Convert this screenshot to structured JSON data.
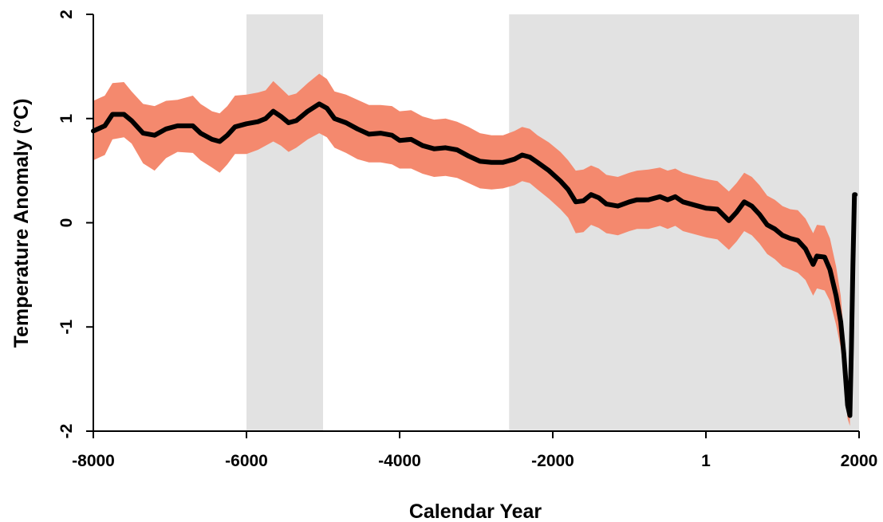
{
  "chart_data": {
    "type": "line",
    "title": "",
    "xlabel": "Calendar Year",
    "ylabel": "Temperature Anomaly (°C)",
    "xlim": [
      -8000,
      2000
    ],
    "ylim": [
      -2,
      2
    ],
    "x_ticks": [
      {
        "value": -8000,
        "label": "-8000"
      },
      {
        "value": -6000,
        "label": "-6000"
      },
      {
        "value": -4000,
        "label": "-4000"
      },
      {
        "value": -2000,
        "label": "-2000"
      },
      {
        "value": 0,
        "label": "1"
      },
      {
        "value": 2000,
        "label": "2000"
      }
    ],
    "y_ticks": [
      {
        "value": 2,
        "label": "2"
      },
      {
        "value": 1,
        "label": "1"
      },
      {
        "value": 0,
        "label": "0"
      },
      {
        "value": -1,
        "label": "-1"
      },
      {
        "value": -2,
        "label": "-2"
      }
    ],
    "grid": false,
    "legend": "none",
    "shaded_periods": [
      {
        "start": -6000,
        "end": -5000
      },
      {
        "start": -2570,
        "end": 2000
      }
    ],
    "colors": {
      "line": "#000000",
      "band": "#f4896e",
      "shade": "#e2e2e2"
    },
    "series": [
      {
        "points": [
          [
            -8000,
            0.88
          ],
          [
            -7850,
            0.93
          ],
          [
            -7750,
            1.04
          ],
          [
            -7600,
            1.04
          ],
          [
            -7500,
            0.98
          ],
          [
            -7350,
            0.86
          ],
          [
            -7200,
            0.84
          ],
          [
            -7050,
            0.9
          ],
          [
            -6900,
            0.93
          ],
          [
            -6700,
            0.93
          ],
          [
            -6600,
            0.86
          ],
          [
            -6450,
            0.8
          ],
          [
            -6350,
            0.78
          ],
          [
            -6250,
            0.84
          ],
          [
            -6150,
            0.92
          ],
          [
            -6000,
            0.95
          ],
          [
            -5850,
            0.97
          ],
          [
            -5750,
            1.0
          ],
          [
            -5650,
            1.07
          ],
          [
            -5550,
            1.02
          ],
          [
            -5450,
            0.96
          ],
          [
            -5350,
            0.98
          ],
          [
            -5200,
            1.07
          ],
          [
            -5050,
            1.14
          ],
          [
            -4950,
            1.1
          ],
          [
            -4850,
            1.0
          ],
          [
            -4700,
            0.96
          ],
          [
            -4550,
            0.9
          ],
          [
            -4400,
            0.85
          ],
          [
            -4250,
            0.86
          ],
          [
            -4100,
            0.84
          ],
          [
            -4000,
            0.79
          ],
          [
            -3850,
            0.8
          ],
          [
            -3700,
            0.74
          ],
          [
            -3550,
            0.71
          ],
          [
            -3400,
            0.72
          ],
          [
            -3250,
            0.7
          ],
          [
            -3100,
            0.64
          ],
          [
            -2950,
            0.59
          ],
          [
            -2800,
            0.58
          ],
          [
            -2650,
            0.58
          ],
          [
            -2500,
            0.61
          ],
          [
            -2400,
            0.65
          ],
          [
            -2300,
            0.63
          ],
          [
            -2200,
            0.58
          ],
          [
            -2050,
            0.5
          ],
          [
            -1900,
            0.4
          ],
          [
            -1800,
            0.32
          ],
          [
            -1700,
            0.2
          ],
          [
            -1600,
            0.21
          ],
          [
            -1500,
            0.27
          ],
          [
            -1400,
            0.24
          ],
          [
            -1300,
            0.18
          ],
          [
            -1150,
            0.16
          ],
          [
            -1000,
            0.2
          ],
          [
            -900,
            0.22
          ],
          [
            -750,
            0.22
          ],
          [
            -600,
            0.25
          ],
          [
            -500,
            0.22
          ],
          [
            -400,
            0.25
          ],
          [
            -300,
            0.2
          ],
          [
            -150,
            0.17
          ],
          [
            0,
            0.14
          ],
          [
            150,
            0.13
          ],
          [
            300,
            0.02
          ],
          [
            400,
            0.1
          ],
          [
            500,
            0.2
          ],
          [
            600,
            0.16
          ],
          [
            700,
            0.08
          ],
          [
            800,
            -0.02
          ],
          [
            900,
            -0.06
          ],
          [
            1000,
            -0.12
          ],
          [
            1100,
            -0.15
          ],
          [
            1200,
            -0.17
          ],
          [
            1300,
            -0.25
          ],
          [
            1400,
            -0.4
          ],
          [
            1450,
            -0.32
          ],
          [
            1550,
            -0.33
          ],
          [
            1620,
            -0.45
          ],
          [
            1700,
            -0.7
          ],
          [
            1760,
            -0.95
          ],
          [
            1800,
            -1.25
          ],
          [
            1830,
            -1.55
          ],
          [
            1850,
            -1.75
          ],
          [
            1880,
            -1.85
          ],
          [
            1900,
            -1.2
          ],
          [
            1920,
            -0.4
          ],
          [
            1940,
            0.27
          ],
          [
            1950,
            0.27
          ]
        ],
        "band": [
          [
            -8000,
            0.6,
            1.17
          ],
          [
            -7850,
            0.65,
            1.22
          ],
          [
            -7750,
            0.8,
            1.34
          ],
          [
            -7600,
            0.82,
            1.35
          ],
          [
            -7500,
            0.76,
            1.26
          ],
          [
            -7350,
            0.57,
            1.14
          ],
          [
            -7200,
            0.5,
            1.12
          ],
          [
            -7050,
            0.62,
            1.17
          ],
          [
            -6900,
            0.68,
            1.18
          ],
          [
            -6700,
            0.67,
            1.22
          ],
          [
            -6600,
            0.6,
            1.14
          ],
          [
            -6450,
            0.53,
            1.07
          ],
          [
            -6350,
            0.48,
            1.05
          ],
          [
            -6250,
            0.56,
            1.12
          ],
          [
            -6150,
            0.66,
            1.22
          ],
          [
            -6000,
            0.66,
            1.23
          ],
          [
            -5850,
            0.7,
            1.25
          ],
          [
            -5750,
            0.74,
            1.27
          ],
          [
            -5650,
            0.78,
            1.36
          ],
          [
            -5550,
            0.74,
            1.29
          ],
          [
            -5450,
            0.68,
            1.22
          ],
          [
            -5350,
            0.72,
            1.24
          ],
          [
            -5200,
            0.8,
            1.34
          ],
          [
            -5050,
            0.86,
            1.43
          ],
          [
            -4950,
            0.82,
            1.38
          ],
          [
            -4850,
            0.72,
            1.26
          ],
          [
            -4700,
            0.67,
            1.23
          ],
          [
            -4550,
            0.61,
            1.18
          ],
          [
            -4400,
            0.58,
            1.13
          ],
          [
            -4250,
            0.58,
            1.13
          ],
          [
            -4100,
            0.56,
            1.12
          ],
          [
            -4000,
            0.52,
            1.07
          ],
          [
            -3850,
            0.52,
            1.08
          ],
          [
            -3700,
            0.47,
            1.02
          ],
          [
            -3550,
            0.44,
            0.99
          ],
          [
            -3400,
            0.45,
            1.0
          ],
          [
            -3250,
            0.43,
            0.97
          ],
          [
            -3100,
            0.38,
            0.92
          ],
          [
            -2950,
            0.33,
            0.86
          ],
          [
            -2800,
            0.32,
            0.84
          ],
          [
            -2650,
            0.33,
            0.84
          ],
          [
            -2500,
            0.36,
            0.88
          ],
          [
            -2400,
            0.4,
            0.92
          ],
          [
            -2300,
            0.38,
            0.9
          ],
          [
            -2200,
            0.32,
            0.84
          ],
          [
            -2050,
            0.23,
            0.77
          ],
          [
            -1900,
            0.13,
            0.68
          ],
          [
            -1800,
            0.05,
            0.6
          ],
          [
            -1700,
            -0.1,
            0.5
          ],
          [
            -1600,
            -0.09,
            0.51
          ],
          [
            -1500,
            -0.02,
            0.55
          ],
          [
            -1400,
            -0.05,
            0.52
          ],
          [
            -1300,
            -0.1,
            0.46
          ],
          [
            -1150,
            -0.12,
            0.44
          ],
          [
            -1000,
            -0.08,
            0.48
          ],
          [
            -900,
            -0.06,
            0.5
          ],
          [
            -750,
            -0.06,
            0.51
          ],
          [
            -600,
            -0.03,
            0.53
          ],
          [
            -500,
            -0.06,
            0.5
          ],
          [
            -400,
            -0.03,
            0.52
          ],
          [
            -300,
            -0.08,
            0.48
          ],
          [
            -150,
            -0.11,
            0.45
          ],
          [
            0,
            -0.14,
            0.42
          ],
          [
            150,
            -0.16,
            0.4
          ],
          [
            300,
            -0.26,
            0.3
          ],
          [
            400,
            -0.18,
            0.38
          ],
          [
            500,
            -0.08,
            0.48
          ],
          [
            600,
            -0.12,
            0.44
          ],
          [
            700,
            -0.2,
            0.36
          ],
          [
            800,
            -0.3,
            0.26
          ],
          [
            900,
            -0.35,
            0.22
          ],
          [
            1000,
            -0.42,
            0.16
          ],
          [
            1100,
            -0.45,
            0.13
          ],
          [
            1200,
            -0.48,
            0.12
          ],
          [
            1300,
            -0.55,
            0.04
          ],
          [
            1400,
            -0.7,
            -0.1
          ],
          [
            1450,
            -0.63,
            -0.02
          ],
          [
            1550,
            -0.65,
            -0.03
          ],
          [
            1620,
            -0.75,
            -0.15
          ],
          [
            1700,
            -0.98,
            -0.42
          ],
          [
            1760,
            -1.2,
            -0.7
          ],
          [
            1800,
            -1.45,
            -1.05
          ],
          [
            1830,
            -1.72,
            -1.4
          ],
          [
            1850,
            -1.88,
            -1.62
          ],
          [
            1880,
            -1.95,
            -1.78
          ]
        ]
      }
    ]
  }
}
